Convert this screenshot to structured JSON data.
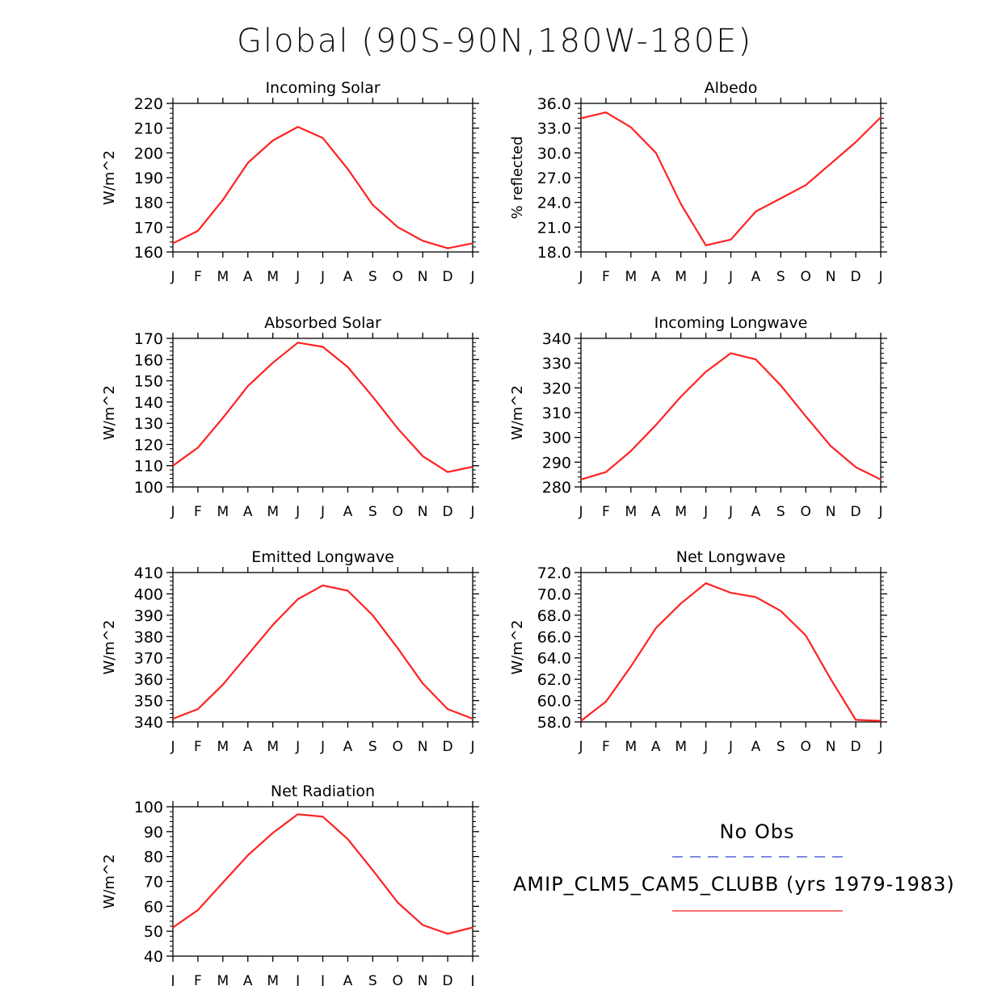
{
  "page_title": "Global (90S-90N,180W-180E)",
  "legend": {
    "obs_label": "No Obs",
    "obs_color": "#3344cc",
    "model_label": "AMIP_CLM5_CAM5_CLUBB (yrs 1979-1983)",
    "model_color": "#ff2222"
  },
  "chart_data": [
    {
      "type": "line",
      "title": "Incoming Solar",
      "ylabel": "W/m^2",
      "xlabel": "",
      "categories": [
        "J",
        "F",
        "M",
        "A",
        "M",
        "J",
        "J",
        "A",
        "S",
        "O",
        "N",
        "D",
        "J"
      ],
      "ylim": [
        160,
        220
      ],
      "yticks": [
        "160",
        "170",
        "180",
        "190",
        "200",
        "210",
        "220"
      ],
      "series": [
        {
          "name": "AMIP_CLM5_CAM5_CLUBB (yrs 1979-1983)",
          "values": [
            163.5,
            168.5,
            181,
            196,
            205,
            210.5,
            206,
            193.5,
            179,
            170,
            164.5,
            161.5,
            163.5
          ]
        }
      ]
    },
    {
      "type": "line",
      "title": "Albedo",
      "ylabel": "% reflected",
      "xlabel": "",
      "categories": [
        "J",
        "F",
        "M",
        "A",
        "M",
        "J",
        "J",
        "A",
        "S",
        "O",
        "N",
        "D",
        "J"
      ],
      "ylim": [
        18,
        36
      ],
      "yticks": [
        "18.0",
        "21.0",
        "24.0",
        "27.0",
        "30.0",
        "33.0",
        "36.0"
      ],
      "series": [
        {
          "name": "AMIP_CLM5_CAM5_CLUBB (yrs 1979-1983)",
          "values": [
            34.2,
            34.9,
            33.1,
            30.0,
            23.8,
            18.8,
            19.5,
            22.9,
            24.5,
            26.1,
            28.7,
            31.3,
            34.3
          ]
        }
      ]
    },
    {
      "type": "line",
      "title": "Absorbed Solar",
      "ylabel": "W/m^2",
      "xlabel": "",
      "categories": [
        "J",
        "F",
        "M",
        "A",
        "M",
        "J",
        "J",
        "A",
        "S",
        "O",
        "N",
        "D",
        "J"
      ],
      "ylim": [
        100,
        170
      ],
      "yticks": [
        "100",
        "110",
        "120",
        "130",
        "140",
        "150",
        "160",
        "170"
      ],
      "series": [
        {
          "name": "AMIP_CLM5_CAM5_CLUBB (yrs 1979-1983)",
          "values": [
            110,
            118.5,
            132.5,
            147.5,
            158.5,
            168,
            166,
            156.5,
            142.5,
            127.5,
            114.5,
            107,
            109.5
          ]
        }
      ]
    },
    {
      "type": "line",
      "title": "Incoming Longwave",
      "ylabel": "W/m^2",
      "xlabel": "",
      "categories": [
        "J",
        "F",
        "M",
        "A",
        "M",
        "J",
        "J",
        "A",
        "S",
        "O",
        "N",
        "D",
        "J"
      ],
      "ylim": [
        280,
        340
      ],
      "yticks": [
        "280",
        "290",
        "300",
        "310",
        "320",
        "330",
        "340"
      ],
      "series": [
        {
          "name": "AMIP_CLM5_CAM5_CLUBB (yrs 1979-1983)",
          "values": [
            283,
            286,
            294.5,
            305,
            316.5,
            326.5,
            334,
            331.5,
            321,
            308.5,
            296.5,
            288,
            283
          ]
        }
      ]
    },
    {
      "type": "line",
      "title": "Emitted Longwave",
      "ylabel": "W/m^2",
      "xlabel": "",
      "categories": [
        "J",
        "F",
        "M",
        "A",
        "M",
        "J",
        "J",
        "A",
        "S",
        "O",
        "N",
        "D",
        "J"
      ],
      "ylim": [
        340,
        410
      ],
      "yticks": [
        "340",
        "350",
        "360",
        "370",
        "380",
        "390",
        "400",
        "410"
      ],
      "series": [
        {
          "name": "AMIP_CLM5_CAM5_CLUBB (yrs 1979-1983)",
          "values": [
            341.5,
            346,
            357.5,
            371.5,
            385.5,
            397.5,
            404,
            401.5,
            390,
            374.5,
            358,
            346,
            341.5
          ]
        }
      ]
    },
    {
      "type": "line",
      "title": "Net Longwave",
      "ylabel": "W/m^2",
      "xlabel": "",
      "categories": [
        "J",
        "F",
        "M",
        "A",
        "M",
        "J",
        "J",
        "A",
        "S",
        "O",
        "N",
        "D",
        "J"
      ],
      "ylim": [
        58,
        72
      ],
      "yticks": [
        "58.0",
        "60.0",
        "62.0",
        "64.0",
        "66.0",
        "68.0",
        "70.0",
        "72.0"
      ],
      "series": [
        {
          "name": "AMIP_CLM5_CAM5_CLUBB (yrs 1979-1983)",
          "values": [
            58.1,
            59.9,
            63.2,
            66.8,
            69.1,
            71.0,
            70.1,
            69.7,
            68.4,
            66.1,
            62.0,
            58.2,
            58.1
          ]
        }
      ]
    },
    {
      "type": "line",
      "title": "Net Radiation",
      "ylabel": "W/m^2",
      "xlabel": "",
      "categories": [
        "J",
        "F",
        "M",
        "A",
        "M",
        "J",
        "J",
        "A",
        "S",
        "O",
        "N",
        "D",
        "J"
      ],
      "ylim": [
        40,
        100
      ],
      "yticks": [
        "40",
        "50",
        "60",
        "70",
        "80",
        "90",
        "100"
      ],
      "series": [
        {
          "name": "AMIP_CLM5_CAM5_CLUBB (yrs 1979-1983)",
          "values": [
            51.5,
            58.5,
            69.5,
            80.5,
            89.5,
            97,
            96,
            87,
            74.5,
            61.5,
            52.5,
            49,
            51.5
          ]
        }
      ]
    }
  ]
}
